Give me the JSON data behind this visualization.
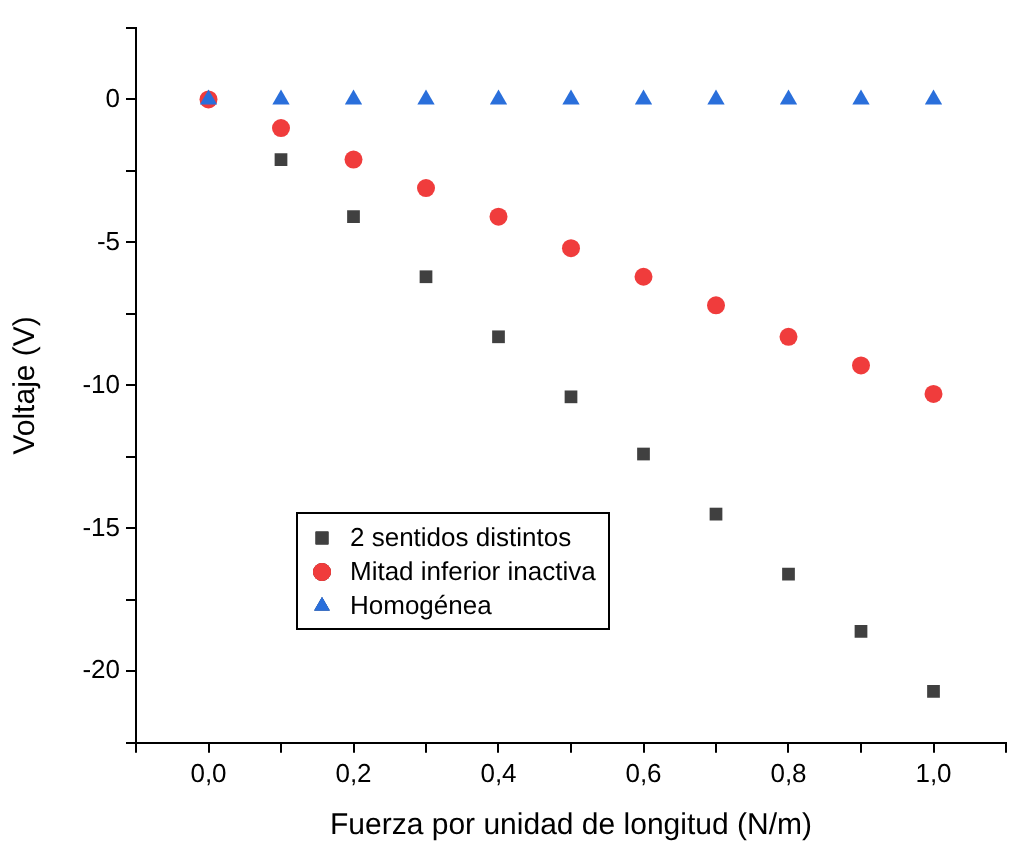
{
  "chart_data": {
    "type": "scatter",
    "xlabel": "Fuerza por unidad de longitud (N/m)",
    "ylabel": "Voltaje (V)",
    "x": [
      0,
      0.1,
      0.2,
      0.3,
      0.4,
      0.5,
      0.6,
      0.7,
      0.8,
      0.9,
      1.0
    ],
    "series": [
      {
        "name": "2 sentidos distintos",
        "color": "#404040",
        "marker": "square",
        "values": [
          null,
          -2.1,
          -4.1,
          -6.2,
          -8.3,
          -10.4,
          -12.4,
          -14.5,
          -16.6,
          -18.6,
          -20.7
        ]
      },
      {
        "name": "Mitad inferior inactiva",
        "color": "#f03c3c",
        "marker": "circle",
        "values": [
          0,
          -1.0,
          -2.1,
          -3.1,
          -4.1,
          -5.2,
          -6.2,
          -7.2,
          -8.3,
          -9.3,
          -10.3
        ]
      },
      {
        "name": "Homogénea",
        "color": "#2a6fdb",
        "marker": "triangle",
        "values": [
          0,
          0,
          0,
          0,
          0,
          0,
          0,
          0,
          0,
          0,
          0
        ]
      }
    ],
    "xlim": [
      -0.1,
      1.1
    ],
    "xticks": [
      {
        "value": -0.1,
        "label": null
      },
      {
        "value": 0,
        "label": "0,0"
      },
      {
        "value": 0.1,
        "label": null
      },
      {
        "value": 0.2,
        "label": "0,2"
      },
      {
        "value": 0.3,
        "label": null
      },
      {
        "value": 0.4,
        "label": "0,4"
      },
      {
        "value": 0.5,
        "label": null
      },
      {
        "value": 0.6,
        "label": "0,6"
      },
      {
        "value": 0.7,
        "label": null
      },
      {
        "value": 0.8,
        "label": "0,8"
      },
      {
        "value": 0.9,
        "label": null
      },
      {
        "value": 1.0,
        "label": "1,0"
      },
      {
        "value": 1.1,
        "label": null
      }
    ],
    "ylim": [
      -22.5,
      2.5
    ],
    "yticks": [
      {
        "value": -22.5,
        "label": null
      },
      -20,
      {
        "value": -17.5,
        "label": null
      },
      -15,
      {
        "value": -12.5,
        "label": null
      },
      -10,
      {
        "value": -7.5,
        "label": null
      },
      -5,
      {
        "value": -2.5,
        "label": null
      },
      0,
      {
        "value": 2.5,
        "label": null
      }
    ],
    "grid": false,
    "legend": "bottom left"
  }
}
